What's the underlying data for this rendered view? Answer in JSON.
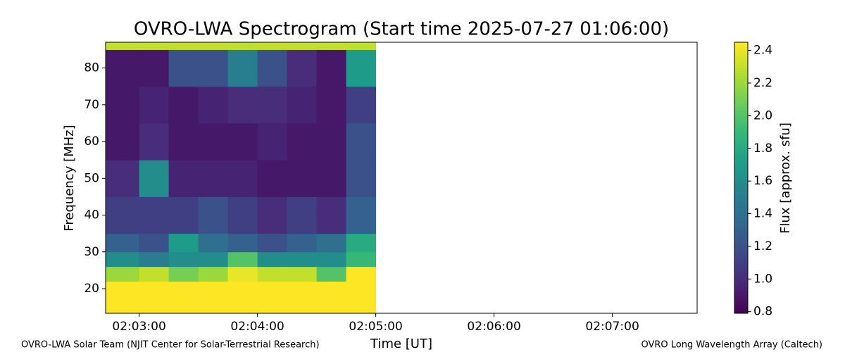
{
  "chart_data": {
    "type": "heatmap",
    "title": "OVRO-LWA Spectrogram (Start time 2025-07-27 01:06:00)",
    "xlabel": "Time [UT]",
    "ylabel": "Frequency [MHz]",
    "x_edges": [
      "02:02:43",
      "02:03:00",
      "02:03:15",
      "02:03:30",
      "02:03:45",
      "02:04:00",
      "02:04:15",
      "02:04:30",
      "02:04:45",
      "02:05:00"
    ],
    "y_edges": [
      13.3,
      22,
      26,
      30,
      35,
      45,
      55,
      65,
      75,
      85,
      87
    ],
    "z": [
      [
        2.45,
        2.45,
        2.45,
        2.45,
        2.45,
        2.45,
        2.45,
        2.45,
        2.45
      ],
      [
        2.2,
        2.3,
        2.1,
        2.2,
        2.4,
        2.3,
        2.3,
        2.0,
        2.45
      ],
      [
        1.6,
        1.5,
        1.6,
        1.6,
        2.0,
        1.6,
        1.6,
        1.6,
        1.9
      ],
      [
        1.3,
        1.2,
        1.7,
        1.4,
        1.3,
        1.2,
        1.3,
        1.4,
        1.8
      ],
      [
        1.1,
        1.1,
        1.1,
        1.2,
        1.1,
        1.0,
        1.1,
        1.0,
        1.3
      ],
      [
        1.0,
        1.6,
        0.95,
        0.95,
        0.95,
        0.9,
        0.9,
        0.9,
        1.2
      ],
      [
        0.9,
        1.0,
        0.9,
        0.9,
        0.9,
        0.95,
        0.9,
        0.9,
        1.2
      ],
      [
        0.9,
        0.95,
        0.9,
        0.95,
        1.0,
        1.0,
        0.95,
        0.9,
        1.1
      ],
      [
        0.9,
        0.9,
        1.2,
        1.2,
        1.5,
        1.2,
        1.0,
        0.9,
        1.7
      ],
      [
        2.3,
        2.3,
        2.3,
        2.3,
        2.3,
        2.3,
        2.3,
        2.3,
        2.3
      ]
    ],
    "xlim": [
      "02:02:43",
      "02:07:43"
    ],
    "xticks": [
      "02:03:00",
      "02:04:00",
      "02:05:00",
      "02:06:00",
      "02:07:00"
    ],
    "ylim": [
      13.3,
      87
    ],
    "yticks": [
      20,
      30,
      40,
      50,
      60,
      70,
      80
    ],
    "colormap": "viridis",
    "colorbar": {
      "label": "Flux [approx. sfu]",
      "lim": [
        0.79,
        2.45
      ],
      "ticks": [
        0.8,
        {
          "value": 1.0,
          "label": "1.0"
        },
        1.2,
        1.4,
        1.6,
        1.8,
        {
          "value": 2.0,
          "label": "2.0"
        },
        2.2,
        2.4
      ]
    }
  },
  "footer_left": "OVRO-LWA Solar Team (NJIT Center for Solar-Terrestrial Research)",
  "footer_right": "OVRO Long Wavelength Array (Caltech)"
}
